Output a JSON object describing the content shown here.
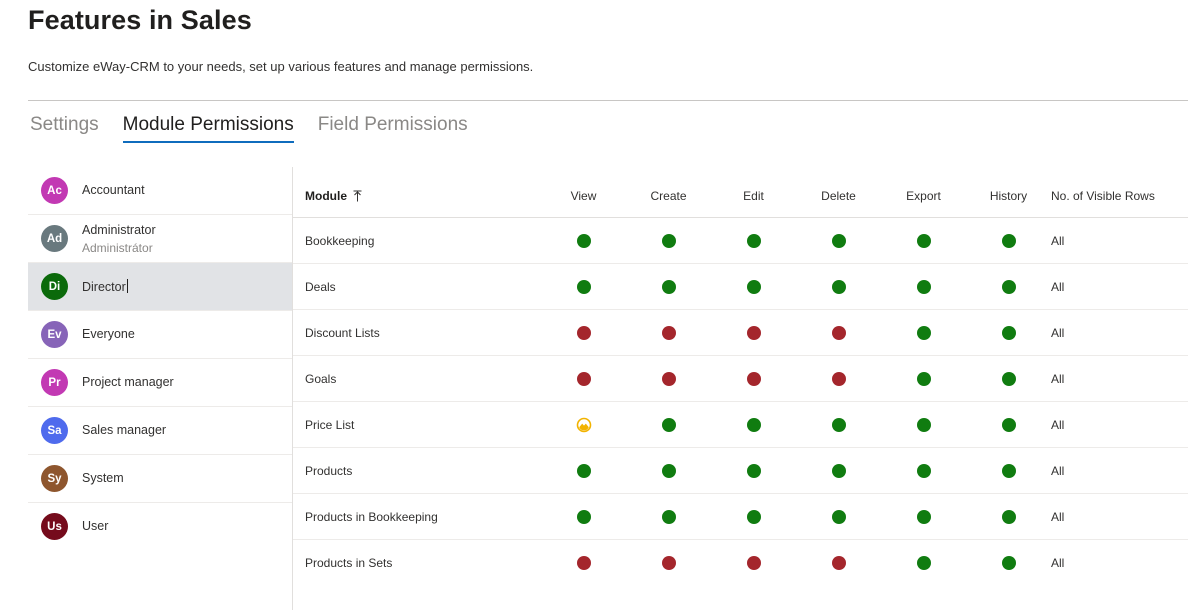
{
  "header": {
    "title": "Features in Sales",
    "subtitle": "Customize eWay-CRM to your needs, set up various features and manage permissions."
  },
  "tabs": [
    {
      "label": "Settings",
      "active": false
    },
    {
      "label": "Module Permissions",
      "active": true
    },
    {
      "label": "Field Permissions",
      "active": false
    }
  ],
  "roles": [
    {
      "initials": "Ac",
      "name": "Accountant",
      "subtitle": "",
      "color": "#c239b3",
      "selected": false
    },
    {
      "initials": "Ad",
      "name": "Administrator",
      "subtitle": "Administrátor",
      "color": "#69797e",
      "selected": false
    },
    {
      "initials": "Di",
      "name": "Director",
      "subtitle": "",
      "color": "#0b6a0b",
      "selected": true
    },
    {
      "initials": "Ev",
      "name": "Everyone",
      "subtitle": "",
      "color": "#8764b8",
      "selected": false
    },
    {
      "initials": "Pr",
      "name": "Project manager",
      "subtitle": "",
      "color": "#c239b3",
      "selected": false
    },
    {
      "initials": "Sa",
      "name": "Sales manager",
      "subtitle": "",
      "color": "#4f6bed",
      "selected": false
    },
    {
      "initials": "Sy",
      "name": "System",
      "subtitle": "",
      "color": "#8e562e",
      "selected": false
    },
    {
      "initials": "Us",
      "name": "User",
      "subtitle": "",
      "color": "#750b1c",
      "selected": false
    }
  ],
  "table": {
    "headers": {
      "module": "Module",
      "view": "View",
      "create": "Create",
      "edit": "Edit",
      "delete": "Delete",
      "export": "Export",
      "history": "History",
      "visible_rows": "No. of Visible Rows"
    },
    "rows": [
      {
        "module": "Bookkeeping",
        "perms": [
          "green",
          "green",
          "green",
          "green",
          "green",
          "green"
        ],
        "visible_rows": "All"
      },
      {
        "module": "Deals",
        "perms": [
          "green",
          "green",
          "green",
          "green",
          "green",
          "green"
        ],
        "visible_rows": "All"
      },
      {
        "module": "Discount Lists",
        "perms": [
          "red",
          "red",
          "red",
          "red",
          "green",
          "green"
        ],
        "visible_rows": "All"
      },
      {
        "module": "Goals",
        "perms": [
          "red",
          "red",
          "red",
          "red",
          "green",
          "green"
        ],
        "visible_rows": "All"
      },
      {
        "module": "Price List",
        "perms": [
          "partial",
          "green",
          "green",
          "green",
          "green",
          "green"
        ],
        "visible_rows": "All"
      },
      {
        "module": "Products",
        "perms": [
          "green",
          "green",
          "green",
          "green",
          "green",
          "green"
        ],
        "visible_rows": "All"
      },
      {
        "module": "Products in Bookkeeping",
        "perms": [
          "green",
          "green",
          "green",
          "green",
          "green",
          "green"
        ],
        "visible_rows": "All"
      },
      {
        "module": "Products in Sets",
        "perms": [
          "red",
          "red",
          "red",
          "red",
          "green",
          "green"
        ],
        "visible_rows": "All"
      }
    ]
  },
  "icons": {
    "sort": "sort-ascending-icon",
    "allowed": "green-dot-icon",
    "denied": "red-dot-icon",
    "partial": "partial-permission-icon"
  },
  "colors": {
    "allowed": "#107c10",
    "denied": "#a4262c",
    "partial": "#f2b300",
    "accent": "#0f6cbd",
    "selected_row": "#e1e3e6"
  }
}
